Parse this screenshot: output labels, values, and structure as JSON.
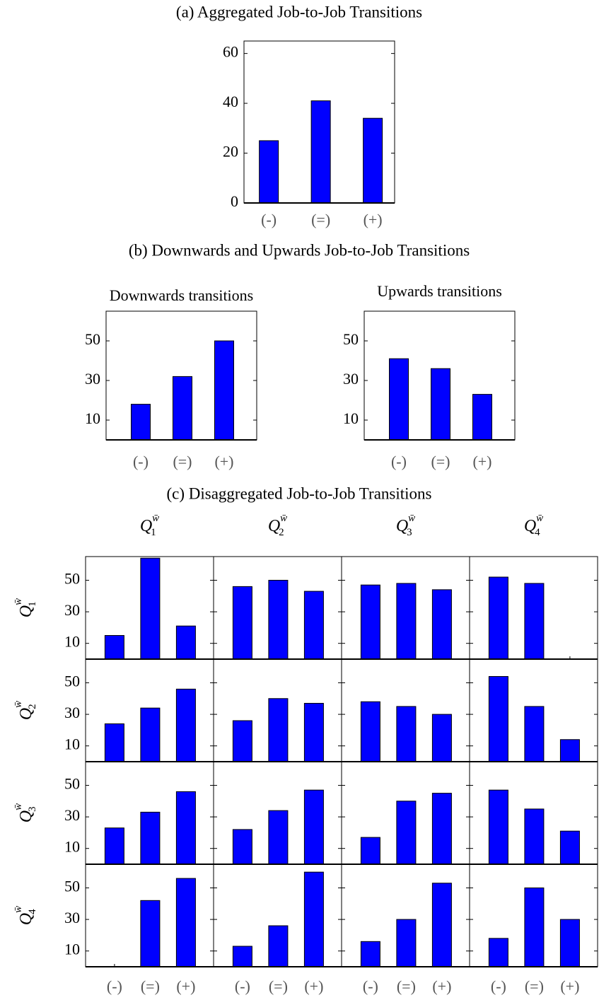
{
  "captions": [
    "(a) Aggregated Job-to-Job Transitions",
    "(b) Downwards and Upwards Job-to-Job Transitions",
    "(c) Disaggregated Job-to-Job Transitions"
  ],
  "grid": {
    "columns": [
      {
        "symbol": "Q",
        "sub": "1",
        "sup": "w̄"
      },
      {
        "symbol": "Q",
        "sub": "2",
        "sup": "w̄"
      },
      {
        "symbol": "Q",
        "sub": "3",
        "sup": "w̄"
      },
      {
        "symbol": "Q",
        "sub": "4",
        "sup": "w̄"
      }
    ],
    "rows": [
      {
        "symbol": "Q",
        "sub": "1",
        "sup": "w̄"
      },
      {
        "symbol": "Q",
        "sub": "2",
        "sup": "w̄"
      },
      {
        "symbol": "Q",
        "sub": "3",
        "sup": "w̄"
      },
      {
        "symbol": "Q",
        "sub": "4",
        "sup": "w̄"
      }
    ]
  },
  "chart_data": [
    {
      "type": "bar",
      "categories": [
        "(-)",
        "(=)",
        "(+)"
      ],
      "values": [
        25,
        41,
        34
      ],
      "color": "#0000ff",
      "ylim": [
        0,
        65
      ],
      "yticks": [
        0,
        20,
        40,
        60
      ]
    },
    {
      "type": "bar",
      "title": "Downwards transitions",
      "categories": [
        "(-)",
        "(=)",
        "(+)"
      ],
      "values": [
        18,
        32,
        50
      ],
      "color": "#0000ff",
      "ylim": [
        0,
        65
      ],
      "yticks": [
        10,
        30,
        50
      ]
    },
    {
      "type": "bar",
      "title": "Upwards transitions",
      "categories": [
        "(-)",
        "(=)",
        "(+)"
      ],
      "values": [
        41,
        36,
        23
      ],
      "color": "#0000ff",
      "ylim": [
        0,
        65
      ],
      "yticks": [
        10,
        30,
        50
      ]
    },
    {
      "type": "bar",
      "values": [
        15,
        64,
        21
      ],
      "color": "#0000ff",
      "ylim": [
        0,
        65
      ],
      "yticks": [
        10,
        30,
        50
      ]
    },
    {
      "type": "bar",
      "values": [
        46,
        50,
        43
      ],
      "color": "#0000ff",
      "ylim": [
        0,
        65
      ],
      "yticks": [
        10,
        30,
        50
      ]
    },
    {
      "type": "bar",
      "values": [
        47,
        48,
        44
      ],
      "color": "#0000ff",
      "ylim": [
        0,
        65
      ],
      "yticks": [
        10,
        30,
        50
      ]
    },
    {
      "type": "bar",
      "values": [
        52,
        48,
        0
      ],
      "color": "#0000ff",
      "ylim": [
        0,
        65
      ],
      "yticks": [
        10,
        30,
        50
      ]
    },
    {
      "type": "bar",
      "values": [
        24,
        34,
        46
      ],
      "color": "#0000ff",
      "ylim": [
        0,
        65
      ],
      "yticks": [
        10,
        30,
        50
      ]
    },
    {
      "type": "bar",
      "values": [
        26,
        40,
        37
      ],
      "color": "#0000ff",
      "ylim": [
        0,
        65
      ],
      "yticks": [
        10,
        30,
        50
      ]
    },
    {
      "type": "bar",
      "values": [
        38,
        35,
        30
      ],
      "color": "#0000ff",
      "ylim": [
        0,
        65
      ],
      "yticks": [
        10,
        30,
        50
      ]
    },
    {
      "type": "bar",
      "values": [
        54,
        35,
        14
      ],
      "color": "#0000ff",
      "ylim": [
        0,
        65
      ],
      "yticks": [
        10,
        30,
        50
      ]
    },
    {
      "type": "bar",
      "values": [
        23,
        33,
        46
      ],
      "color": "#0000ff",
      "ylim": [
        0,
        65
      ],
      "yticks": [
        10,
        30,
        50
      ]
    },
    {
      "type": "bar",
      "values": [
        22,
        34,
        47
      ],
      "color": "#0000ff",
      "ylim": [
        0,
        65
      ],
      "yticks": [
        10,
        30,
        50
      ]
    },
    {
      "type": "bar",
      "values": [
        17,
        40,
        45
      ],
      "color": "#0000ff",
      "ylim": [
        0,
        65
      ],
      "yticks": [
        10,
        30,
        50
      ]
    },
    {
      "type": "bar",
      "values": [
        47,
        35,
        21
      ],
      "color": "#0000ff",
      "ylim": [
        0,
        65
      ],
      "yticks": [
        10,
        30,
        50
      ]
    },
    {
      "type": "bar",
      "categories": [
        "(-)",
        "(=)",
        "(+)"
      ],
      "values": [
        0,
        42,
        56
      ],
      "color": "#0000ff",
      "ylim": [
        0,
        65
      ],
      "yticks": [
        10,
        30,
        50
      ]
    },
    {
      "type": "bar",
      "categories": [
        "(-)",
        "(=)",
        "(+)"
      ],
      "values": [
        13,
        26,
        60
      ],
      "color": "#0000ff",
      "ylim": [
        0,
        65
      ],
      "yticks": [
        10,
        30,
        50
      ]
    },
    {
      "type": "bar",
      "categories": [
        "(-)",
        "(=)",
        "(+)"
      ],
      "values": [
        16,
        30,
        53
      ],
      "color": "#0000ff",
      "ylim": [
        0,
        65
      ],
      "yticks": [
        10,
        30,
        50
      ]
    },
    {
      "type": "bar",
      "categories": [
        "(-)",
        "(=)",
        "(+)"
      ],
      "values": [
        18,
        50,
        30
      ],
      "color": "#0000ff",
      "ylim": [
        0,
        65
      ],
      "yticks": [
        10,
        30,
        50
      ]
    }
  ]
}
